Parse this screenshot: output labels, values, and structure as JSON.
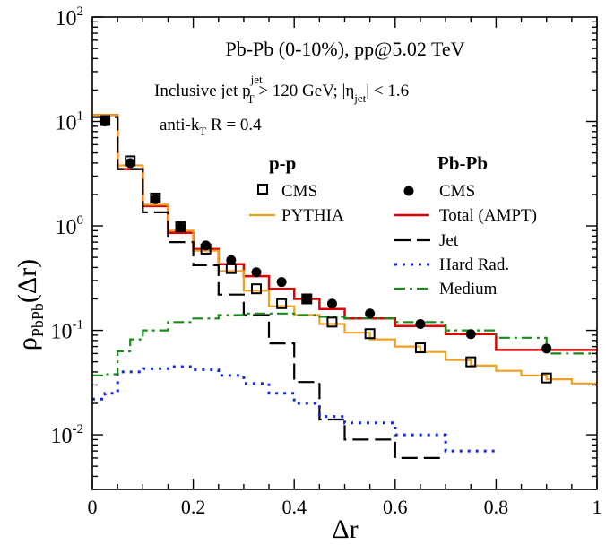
{
  "chart_data": {
    "type": "line",
    "xlabel": "Δr",
    "ylabel": "ρ",
    "ylabel_sub": "PbPb",
    "ylabel_arg": "(Δr)",
    "xlim": [
      0,
      1
    ],
    "ylim": [
      0.003,
      100
    ],
    "yscale": "log",
    "grid": false,
    "x_ticks": [
      {
        "v": 0,
        "label": "0"
      },
      {
        "v": 0.2,
        "label": "0.2"
      },
      {
        "v": 0.4,
        "label": "0.4"
      },
      {
        "v": 0.6,
        "label": "0.6"
      },
      {
        "v": 0.8,
        "label": "0.8"
      },
      {
        "v": 1,
        "label": "1"
      }
    ],
    "y_ticks": [
      {
        "v": 0.01,
        "mant": "10",
        "exp": "-2"
      },
      {
        "v": 0.1,
        "mant": "10",
        "exp": "-1"
      },
      {
        "v": 1,
        "mant": "10",
        "exp": "0"
      },
      {
        "v": 10,
        "mant": "10",
        "exp": "1"
      },
      {
        "v": 100,
        "mant": "10",
        "exp": "2"
      }
    ],
    "annotations": {
      "line1": "Pb-Pb (0-10%), pp@5.02 TeV",
      "line2_a": "Inclusive jet p",
      "line2_sup": "jet",
      "line2_sub": "T",
      "line2_b": " > 120 GeV;   |η",
      "line2_sub2": "jet",
      "line2_c": "| < 1.6",
      "line3_a": "anti-k",
      "line3_sub": "T",
      "line3_b": " R = 0.4"
    },
    "legend": {
      "pp_header": "p-p",
      "pbpb_header": "Pb-Pb",
      "pp_cms": "CMS",
      "pp_pythia": "PYTHIA",
      "pbpb_cms": "CMS",
      "total": "Total (AMPT)",
      "jet": "Jet",
      "hard": "Hard Rad.",
      "medium": "Medium"
    },
    "bin_edges": [
      0,
      0.05,
      0.1,
      0.15,
      0.2,
      0.25,
      0.3,
      0.35,
      0.4,
      0.45,
      0.5,
      0.6,
      0.7,
      0.8,
      0.9,
      1.0
    ],
    "bin_centers": [
      0.025,
      0.075,
      0.125,
      0.175,
      0.225,
      0.275,
      0.325,
      0.375,
      0.425,
      0.475,
      0.55,
      0.65,
      0.75,
      0.9
    ],
    "steps": [
      {
        "name": "Total (AMPT)",
        "color": "#e00000",
        "dash": "",
        "width": 2.5,
        "edges": [
          0,
          0.05,
          0.1,
          0.15,
          0.2,
          0.25,
          0.3,
          0.35,
          0.4,
          0.45,
          0.5,
          0.6,
          0.7,
          0.8,
          1.0
        ],
        "values": [
          11.5,
          3.5,
          1.55,
          0.86,
          0.6,
          0.43,
          0.33,
          0.25,
          0.2,
          0.16,
          0.13,
          0.11,
          0.092,
          0.065
        ]
      },
      {
        "name": "PYTHIA",
        "color": "#f0a020",
        "dash": "",
        "width": 2.2,
        "edges": [
          0,
          0.05,
          0.1,
          0.15,
          0.2,
          0.25,
          0.3,
          0.35,
          0.4,
          0.45,
          0.5,
          0.55,
          0.6,
          0.65,
          0.7,
          0.75,
          0.8,
          0.85,
          0.9,
          0.95,
          1.0
        ],
        "values": [
          11.5,
          3.8,
          1.6,
          0.9,
          0.58,
          0.37,
          0.24,
          0.17,
          0.14,
          0.115,
          0.095,
          0.082,
          0.07,
          0.062,
          0.052,
          0.046,
          0.041,
          0.037,
          0.034,
          0.031
        ]
      },
      {
        "name": "Jet",
        "color": "#000000",
        "dash": "18,7",
        "width": 2.2,
        "edges": [
          0,
          0.05,
          0.1,
          0.15,
          0.2,
          0.25,
          0.3,
          0.35,
          0.4,
          0.45,
          0.5,
          0.6,
          0.7
        ],
        "values": [
          11.0,
          3.5,
          1.35,
          0.7,
          0.42,
          0.22,
          0.14,
          0.075,
          0.032,
          0.014,
          0.009,
          0.006
        ]
      },
      {
        "name": "Hard Rad.",
        "color": "#1428e0",
        "dash": "3,6",
        "width": 3,
        "edges": [
          0,
          0.025,
          0.05,
          0.1,
          0.15,
          0.2,
          0.25,
          0.3,
          0.35,
          0.4,
          0.45,
          0.5,
          0.6,
          0.7,
          0.8
        ],
        "values": [
          0.022,
          0.025,
          0.04,
          0.043,
          0.045,
          0.042,
          0.037,
          0.031,
          0.025,
          0.02,
          0.015,
          0.013,
          0.01,
          0.007
        ]
      },
      {
        "name": "Medium",
        "color": "#1a8a1a",
        "dash": "12,5,3,5",
        "width": 2.2,
        "edges": [
          0,
          0.025,
          0.05,
          0.075,
          0.1,
          0.15,
          0.2,
          0.25,
          0.3,
          0.35,
          0.4,
          0.45,
          0.5,
          0.6,
          0.7,
          0.8,
          0.9,
          1.0
        ],
        "values": [
          0.037,
          0.038,
          0.063,
          0.082,
          0.1,
          0.12,
          0.13,
          0.14,
          0.145,
          0.145,
          0.14,
          0.135,
          0.13,
          0.12,
          0.1,
          0.085,
          0.06
        ]
      }
    ],
    "series_points": [
      {
        "name": "CMS (Pb-Pb)",
        "marker": "filled-circle",
        "x": [
          0.025,
          0.075,
          0.125,
          0.175,
          0.225,
          0.275,
          0.325,
          0.375,
          0.425,
          0.475,
          0.55,
          0.65,
          0.75,
          0.9
        ],
        "y": [
          10.0,
          4.0,
          1.8,
          0.97,
          0.65,
          0.47,
          0.36,
          0.29,
          0.2,
          0.18,
          0.145,
          0.115,
          0.092,
          0.067
        ]
      },
      {
        "name": "CMS (p-p)",
        "marker": "open-square",
        "x": [
          0.025,
          0.075,
          0.125,
          0.175,
          0.225,
          0.275,
          0.325,
          0.375,
          0.425,
          0.475,
          0.55,
          0.65,
          0.75,
          0.9
        ],
        "y": [
          10.2,
          4.2,
          1.85,
          0.98,
          0.6,
          0.39,
          0.25,
          0.18,
          0.2,
          0.12,
          0.093,
          0.068,
          0.05,
          0.035
        ]
      }
    ],
    "colors": {
      "total": "#e00000",
      "pythia": "#f0a020",
      "jet": "#000000",
      "hard": "#1428e0",
      "medium": "#1a8a1a"
    }
  }
}
